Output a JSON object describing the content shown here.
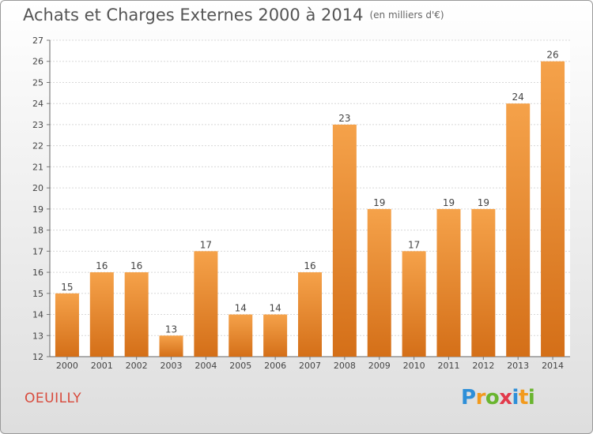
{
  "title": "Achats et Charges Externes 2000 à 2014",
  "unit": "(en milliers d'€)",
  "town": "OEUILLY",
  "logo_text": "Proxiti",
  "colors": {
    "bar_light": "#f5a24a",
    "bar_dark": "#d46f18",
    "town": "#d84a3c"
  },
  "chart_data": {
    "type": "bar",
    "categories": [
      "2000",
      "2001",
      "2002",
      "2003",
      "2004",
      "2005",
      "2006",
      "2007",
      "2008",
      "2009",
      "2010",
      "2011",
      "2012",
      "2013",
      "2014"
    ],
    "values": [
      15,
      16,
      16,
      13,
      17,
      14,
      14,
      16,
      23,
      19,
      17,
      19,
      19,
      24,
      26
    ],
    "ylim": [
      12,
      27
    ],
    "yticks": [
      12,
      13,
      14,
      15,
      16,
      17,
      18,
      19,
      20,
      21,
      22,
      23,
      24,
      25,
      26,
      27
    ],
    "grid": true
  }
}
